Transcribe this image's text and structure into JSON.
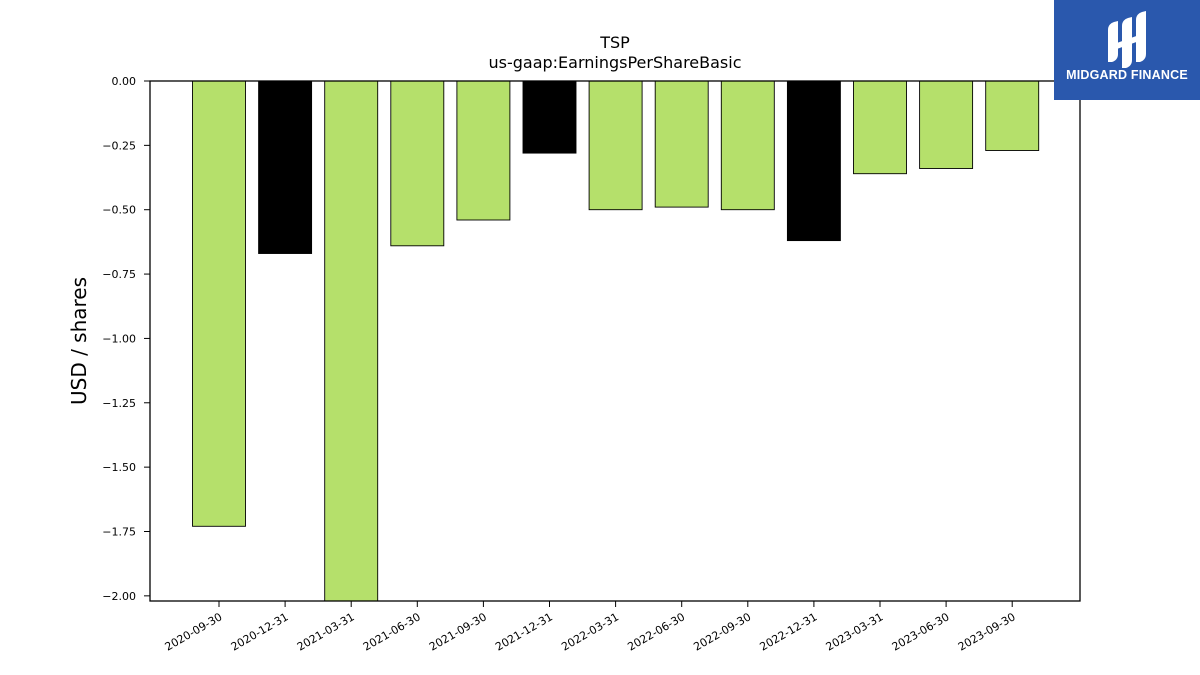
{
  "chart_data": {
    "type": "bar",
    "title": "TSP",
    "subtitle": "us-gaap:EarningsPerShareBasic",
    "xlabel": "",
    "ylabel": "USD / shares",
    "categories": [
      "2020-09-30",
      "2020-12-31",
      "2021-03-31",
      "2021-06-30",
      "2021-09-30",
      "2021-12-31",
      "2022-03-31",
      "2022-06-30",
      "2022-09-30",
      "2022-12-31",
      "2023-03-31",
      "2023-06-30",
      "2023-09-30"
    ],
    "values": [
      -1.73,
      -0.67,
      -2.02,
      -0.64,
      -0.54,
      -0.28,
      -0.5,
      -0.49,
      -0.5,
      -0.62,
      -0.36,
      -0.34,
      -0.27
    ],
    "bar_colors": [
      "#b5e06b",
      "#000000",
      "#b5e06b",
      "#b5e06b",
      "#b5e06b",
      "#000000",
      "#b5e06b",
      "#b5e06b",
      "#b5e06b",
      "#000000",
      "#b5e06b",
      "#b5e06b",
      "#b5e06b"
    ],
    "ylim": [
      -2.02,
      0.0
    ],
    "yticks": [
      "0.00",
      "-0.25",
      "-0.50",
      "-0.75",
      "-1.00",
      "-1.25",
      "-1.50",
      "-1.75",
      "-2.00"
    ],
    "ytick_values": [
      0.0,
      -0.25,
      -0.5,
      -0.75,
      -1.0,
      -1.25,
      -1.5,
      -1.75,
      -2.0
    ],
    "grid": false
  },
  "logo": {
    "text": "MIDGARD FINANCE",
    "background": "#2a58ad",
    "icon": "midgard-logo-icon"
  }
}
